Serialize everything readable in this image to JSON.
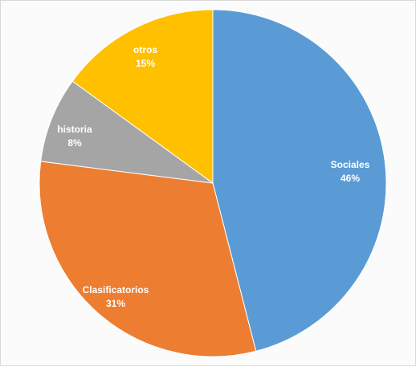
{
  "chart_data": {
    "type": "pie",
    "start_angle_deg": 0,
    "direction": "clockwise",
    "slices": [
      {
        "label": "Sociales",
        "value": 46,
        "percent_label": "46%",
        "color": "#5b9bd5"
      },
      {
        "label": "Clasificatorios",
        "value": 31,
        "percent_label": "31%",
        "color": "#ed7d31"
      },
      {
        "label": "historia",
        "value": 8,
        "percent_label": "8%",
        "color": "#a5a5a5"
      },
      {
        "label": "otros",
        "value": 15,
        "percent_label": "15%",
        "color": "#ffc000"
      }
    ]
  }
}
